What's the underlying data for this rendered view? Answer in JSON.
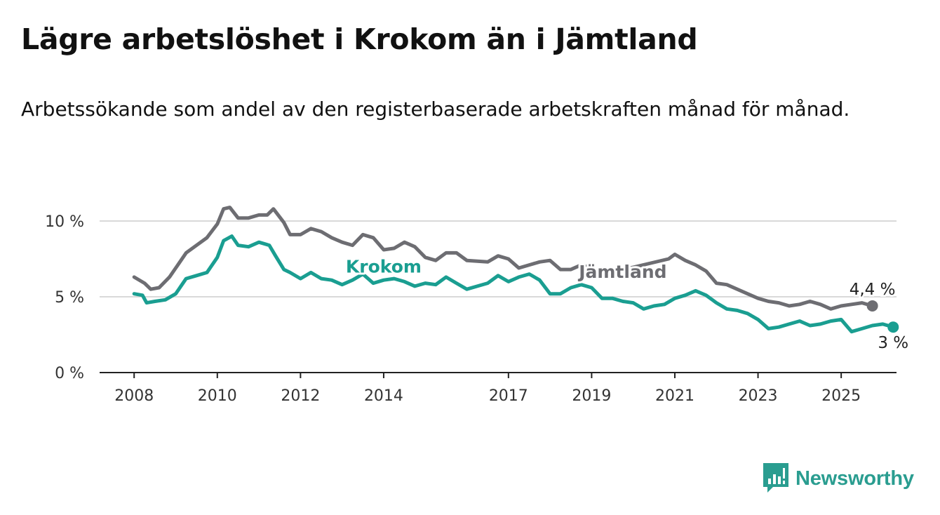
{
  "title": "Lägre arbetslöshet i Krokom än i Jämtland",
  "subtitle": "Arbetssökande som andel av den registerbaserade arbetskraften månad för månad.",
  "brand": "Newsworthy",
  "colors": {
    "krokom": "#1a9e91",
    "jamtland": "#6d6d72",
    "grid": "#d9d9d9",
    "axis": "#222222"
  },
  "chart_data": {
    "type": "line",
    "y_tick_labels": [
      "0 %",
      "5 %",
      "10 %"
    ],
    "y_ticks": [
      0,
      5,
      10
    ],
    "ylim": [
      0,
      10
    ],
    "x_tick_labels": [
      "2008",
      "2010",
      "2012",
      "2014",
      "2017",
      "2019",
      "2021",
      "2023",
      "2025"
    ],
    "x_ticks": [
      2008,
      2010,
      2012,
      2014,
      2017,
      2019,
      2021,
      2023,
      2025
    ],
    "xlim": [
      2007.17,
      2026.33
    ],
    "grid": true,
    "series": [
      {
        "name": "Jämtland",
        "end_label": "4,4 %",
        "points": [
          [
            2008.0,
            6.3
          ],
          [
            2008.25,
            5.9
          ],
          [
            2008.4,
            5.5
          ],
          [
            2008.6,
            5.6
          ],
          [
            2008.85,
            6.3
          ],
          [
            2009.0,
            6.9
          ],
          [
            2009.25,
            7.9
          ],
          [
            2009.5,
            8.4
          ],
          [
            2009.75,
            8.9
          ],
          [
            2010.0,
            9.8
          ],
          [
            2010.15,
            10.8
          ],
          [
            2010.3,
            10.9
          ],
          [
            2010.5,
            10.2
          ],
          [
            2010.75,
            10.2
          ],
          [
            2011.0,
            10.4
          ],
          [
            2011.2,
            10.4
          ],
          [
            2011.35,
            10.8
          ],
          [
            2011.6,
            9.9
          ],
          [
            2011.75,
            9.1
          ],
          [
            2012.0,
            9.1
          ],
          [
            2012.25,
            9.5
          ],
          [
            2012.5,
            9.3
          ],
          [
            2012.75,
            8.9
          ],
          [
            2013.0,
            8.6
          ],
          [
            2013.25,
            8.4
          ],
          [
            2013.5,
            9.1
          ],
          [
            2013.75,
            8.9
          ],
          [
            2014.0,
            8.1
          ],
          [
            2014.25,
            8.2
          ],
          [
            2014.5,
            8.6
          ],
          [
            2014.75,
            8.3
          ],
          [
            2015.0,
            7.6
          ],
          [
            2015.25,
            7.4
          ],
          [
            2015.5,
            7.9
          ],
          [
            2015.75,
            7.9
          ],
          [
            2016.0,
            7.4
          ],
          [
            2016.5,
            7.3
          ],
          [
            2016.75,
            7.7
          ],
          [
            2017.0,
            7.5
          ],
          [
            2017.25,
            6.9
          ],
          [
            2017.5,
            7.1
          ],
          [
            2017.75,
            7.3
          ],
          [
            2018.0,
            7.4
          ],
          [
            2018.25,
            6.8
          ],
          [
            2018.5,
            6.8
          ],
          [
            2018.75,
            7.1
          ],
          [
            2019.0,
            6.9
          ],
          [
            2019.15,
            6.4
          ],
          [
            2020.85,
            7.5
          ],
          [
            2021.0,
            7.8
          ],
          [
            2021.25,
            7.4
          ],
          [
            2021.5,
            7.1
          ],
          [
            2021.75,
            6.7
          ],
          [
            2022.0,
            5.9
          ],
          [
            2022.25,
            5.8
          ],
          [
            2022.5,
            5.5
          ],
          [
            2022.75,
            5.2
          ],
          [
            2023.0,
            4.9
          ],
          [
            2023.25,
            4.7
          ],
          [
            2023.5,
            4.6
          ],
          [
            2023.75,
            4.4
          ],
          [
            2024.0,
            4.5
          ],
          [
            2024.25,
            4.7
          ],
          [
            2024.5,
            4.5
          ],
          [
            2024.75,
            4.2
          ],
          [
            2025.0,
            4.4
          ],
          [
            2025.25,
            4.5
          ],
          [
            2025.5,
            4.6
          ],
          [
            2025.75,
            4.4
          ]
        ]
      },
      {
        "name": "Krokom",
        "end_label": "3 %",
        "points": [
          [
            2008.0,
            5.2
          ],
          [
            2008.2,
            5.1
          ],
          [
            2008.3,
            4.6
          ],
          [
            2008.5,
            4.7
          ],
          [
            2008.75,
            4.8
          ],
          [
            2009.0,
            5.2
          ],
          [
            2009.25,
            6.2
          ],
          [
            2009.5,
            6.4
          ],
          [
            2009.75,
            6.6
          ],
          [
            2010.0,
            7.6
          ],
          [
            2010.15,
            8.7
          ],
          [
            2010.35,
            9.0
          ],
          [
            2010.5,
            8.4
          ],
          [
            2010.75,
            8.3
          ],
          [
            2011.0,
            8.6
          ],
          [
            2011.25,
            8.4
          ],
          [
            2011.4,
            7.7
          ],
          [
            2011.6,
            6.8
          ],
          [
            2011.75,
            6.6
          ],
          [
            2012.0,
            6.2
          ],
          [
            2012.25,
            6.6
          ],
          [
            2012.5,
            6.2
          ],
          [
            2012.75,
            6.1
          ],
          [
            2013.0,
            5.8
          ],
          [
            2013.25,
            6.1
          ],
          [
            2013.5,
            6.5
          ],
          [
            2013.75,
            5.9
          ],
          [
            2014.0,
            6.1
          ],
          [
            2014.25,
            6.2
          ],
          [
            2014.5,
            6.0
          ],
          [
            2014.75,
            5.7
          ],
          [
            2015.0,
            5.9
          ],
          [
            2015.25,
            5.8
          ],
          [
            2015.5,
            6.3
          ],
          [
            2015.75,
            5.9
          ],
          [
            2016.0,
            5.5
          ],
          [
            2016.25,
            5.7
          ],
          [
            2016.5,
            5.9
          ],
          [
            2016.75,
            6.4
          ],
          [
            2017.0,
            6.0
          ],
          [
            2017.25,
            6.3
          ],
          [
            2017.5,
            6.5
          ],
          [
            2017.75,
            6.1
          ],
          [
            2018.0,
            5.2
          ],
          [
            2018.25,
            5.2
          ],
          [
            2018.5,
            5.6
          ],
          [
            2018.75,
            5.8
          ],
          [
            2019.0,
            5.6
          ],
          [
            2019.25,
            4.9
          ],
          [
            2019.5,
            4.9
          ],
          [
            2019.75,
            4.7
          ],
          [
            2020.0,
            4.6
          ],
          [
            2020.25,
            4.2
          ],
          [
            2020.5,
            4.4
          ],
          [
            2020.75,
            4.5
          ],
          [
            2021.0,
            4.9
          ],
          [
            2021.25,
            5.1
          ],
          [
            2021.5,
            5.4
          ],
          [
            2021.75,
            5.1
          ],
          [
            2022.0,
            4.6
          ],
          [
            2022.25,
            4.2
          ],
          [
            2022.5,
            4.1
          ],
          [
            2022.75,
            3.9
          ],
          [
            2023.0,
            3.5
          ],
          [
            2023.25,
            2.9
          ],
          [
            2023.5,
            3.0
          ],
          [
            2023.75,
            3.2
          ],
          [
            2024.0,
            3.4
          ],
          [
            2024.25,
            3.1
          ],
          [
            2024.5,
            3.2
          ],
          [
            2024.75,
            3.4
          ],
          [
            2025.0,
            3.5
          ],
          [
            2025.25,
            2.7
          ],
          [
            2025.5,
            2.9
          ],
          [
            2025.75,
            3.1
          ],
          [
            2026.0,
            3.2
          ],
          [
            2026.25,
            3.0
          ]
        ]
      }
    ]
  }
}
